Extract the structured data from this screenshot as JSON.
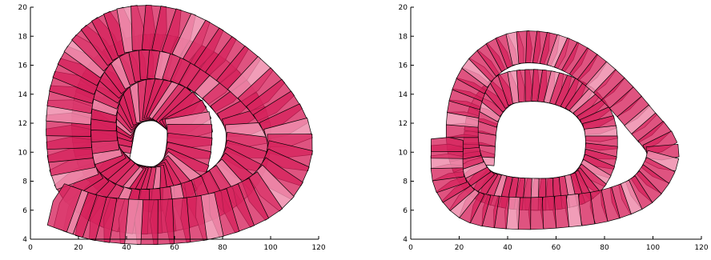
{
  "chart_data": [
    {
      "type": "polygon-sequence",
      "xlim": [
        0,
        120
      ],
      "ylim": [
        4,
        20
      ],
      "xticks": [
        "0",
        "20",
        "40",
        "60",
        "80",
        "100",
        "120"
      ],
      "yticks": [
        "4",
        "6",
        "8",
        "10",
        "12",
        "14",
        "16",
        "18",
        "20"
      ],
      "fill_color": "#d6235c",
      "fill_color_light": "#ee8cab",
      "edge_color": "#000000",
      "shape_size": {
        "x_data": 9.0,
        "y_data": 1.4
      },
      "trajectory": [
        {
          "x": 33,
          "y": 10.6
        },
        {
          "x": 35.5,
          "y": 12.3
        },
        {
          "x": 42,
          "y": 13.4
        },
        {
          "x": 52,
          "y": 13.7
        },
        {
          "x": 60,
          "y": 13.1
        },
        {
          "x": 66,
          "y": 11.8
        },
        {
          "x": 64,
          "y": 9.0
        },
        {
          "x": 55,
          "y": 7.6
        },
        {
          "x": 44,
          "y": 7.6
        },
        {
          "x": 36,
          "y": 8.3
        },
        {
          "x": 28,
          "y": 10.0
        },
        {
          "x": 27,
          "y": 13.0
        },
        {
          "x": 33,
          "y": 15.3
        },
        {
          "x": 46,
          "y": 16.5
        },
        {
          "x": 62,
          "y": 16.3
        },
        {
          "x": 78,
          "y": 14.8
        },
        {
          "x": 90,
          "y": 12.0
        },
        {
          "x": 88,
          "y": 9.0
        },
        {
          "x": 75,
          "y": 7.0
        },
        {
          "x": 55,
          "y": 6.0
        },
        {
          "x": 35,
          "y": 6.2
        },
        {
          "x": 20,
          "y": 8.0
        },
        {
          "x": 16,
          "y": 11.0
        },
        {
          "x": 18,
          "y": 14.5
        },
        {
          "x": 27,
          "y": 17.2
        },
        {
          "x": 42,
          "y": 18.5
        },
        {
          "x": 62,
          "y": 18.2
        },
        {
          "x": 82,
          "y": 16.3
        },
        {
          "x": 100,
          "y": 13.5
        },
        {
          "x": 108,
          "y": 10.5
        },
        {
          "x": 100,
          "y": 7.5
        },
        {
          "x": 80,
          "y": 5.8
        },
        {
          "x": 55,
          "y": 5.2
        },
        {
          "x": 30,
          "y": 5.4
        },
        {
          "x": 14,
          "y": 6.2
        }
      ]
    },
    {
      "type": "polygon-sequence",
      "xlim": [
        0,
        120
      ],
      "ylim": [
        4,
        20
      ],
      "xticks": [
        "0",
        "20",
        "40",
        "60",
        "80",
        "100",
        "120"
      ],
      "yticks": [
        "4",
        "6",
        "8",
        "10",
        "12",
        "14",
        "16",
        "18",
        "20"
      ],
      "fill_color": "#d6235c",
      "fill_color_light": "#ee8cab",
      "edge_color": "#000000",
      "shape_size": {
        "x_data": 5.5,
        "y_data": 1.0
      },
      "trajectory": [
        {
          "x": 28,
          "y": 9.6
        },
        {
          "x": 30,
          "y": 12.5
        },
        {
          "x": 38,
          "y": 14.2
        },
        {
          "x": 50,
          "y": 14.6
        },
        {
          "x": 62,
          "y": 14.3
        },
        {
          "x": 72,
          "y": 13.4
        },
        {
          "x": 78,
          "y": 11.8
        },
        {
          "x": 78,
          "y": 9.5
        },
        {
          "x": 72,
          "y": 7.8
        },
        {
          "x": 62,
          "y": 7.2
        },
        {
          "x": 50,
          "y": 7.1
        },
        {
          "x": 38,
          "y": 7.3
        },
        {
          "x": 28,
          "y": 8.0
        },
        {
          "x": 22,
          "y": 10.0
        },
        {
          "x": 22,
          "y": 13.0
        },
        {
          "x": 28,
          "y": 15.5
        },
        {
          "x": 40,
          "y": 17.0
        },
        {
          "x": 54,
          "y": 17.2
        },
        {
          "x": 68,
          "y": 16.4
        },
        {
          "x": 82,
          "y": 14.6
        },
        {
          "x": 95,
          "y": 12.2
        },
        {
          "x": 104,
          "y": 10.0
        },
        {
          "x": 97,
          "y": 7.6
        },
        {
          "x": 82,
          "y": 6.4
        },
        {
          "x": 62,
          "y": 5.9
        },
        {
          "x": 42,
          "y": 5.8
        },
        {
          "x": 25,
          "y": 6.3
        },
        {
          "x": 16,
          "y": 8.0
        },
        {
          "x": 15,
          "y": 10.5
        }
      ]
    }
  ]
}
